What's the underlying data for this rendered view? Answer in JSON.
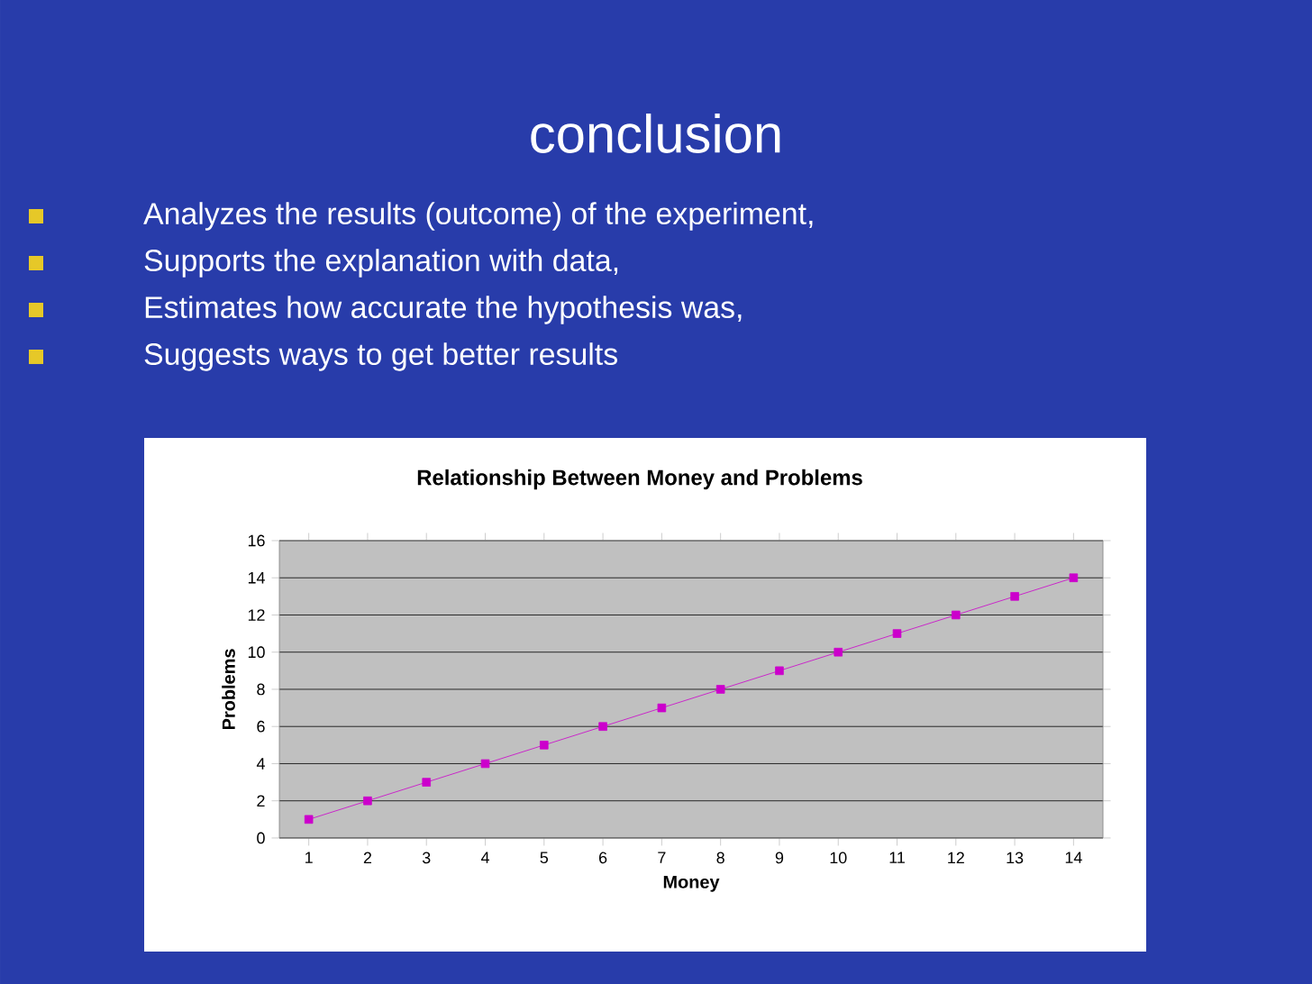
{
  "chart_data": {
    "type": "line",
    "title": "Relationship Between Money and Problems",
    "xlabel": "Money",
    "ylabel": "Problems",
    "categories": [
      "1",
      "2",
      "3",
      "4",
      "5",
      "6",
      "7",
      "8",
      "9",
      "10",
      "11",
      "12",
      "13",
      "14"
    ],
    "values": [
      1,
      2,
      3,
      4,
      5,
      6,
      7,
      8,
      9,
      10,
      11,
      12,
      13,
      14
    ],
    "color": "#cc00cc",
    "marker": "square",
    "grid": "y",
    "ylim": [
      0,
      16
    ],
    "yticks": [
      0,
      2,
      4,
      6,
      8,
      10,
      12,
      14,
      16
    ],
    "annotations": [
      "conclusion",
      "Analyzes the results (outcome) of the experiment,",
      "Supports the explanation with data,",
      "Estimates how accurate the hypothesis was,",
      "Suggests ways to get better results"
    ]
  }
}
